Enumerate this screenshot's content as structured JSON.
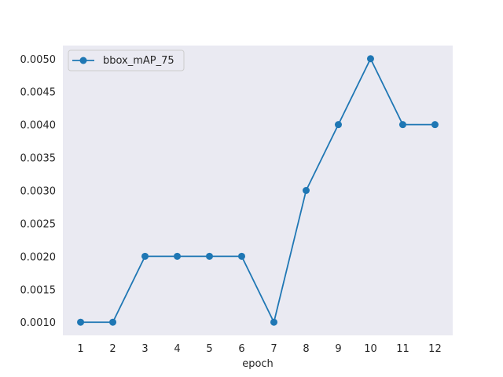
{
  "chart_data": {
    "type": "line",
    "title": "",
    "xlabel": "epoch",
    "ylabel": "",
    "x": [
      1,
      2,
      3,
      4,
      5,
      6,
      7,
      8,
      9,
      10,
      11,
      12
    ],
    "series": [
      {
        "name": "bbox_mAP_75",
        "values": [
          0.001,
          0.001,
          0.002,
          0.002,
          0.002,
          0.002,
          0.001,
          0.003,
          0.004,
          0.005,
          0.004,
          0.004
        ],
        "color": "#1f77b4",
        "marker": "circle"
      }
    ],
    "xlim": [
      0.45,
      12.55
    ],
    "ylim": [
      0.0008,
      0.0052
    ],
    "xticks": [
      "1",
      "2",
      "3",
      "4",
      "5",
      "6",
      "7",
      "8",
      "9",
      "10",
      "11",
      "12"
    ],
    "yticks": [
      "0.0010",
      "0.0015",
      "0.0020",
      "0.0025",
      "0.0030",
      "0.0035",
      "0.0040",
      "0.0045",
      "0.0050"
    ],
    "grid": false,
    "legend_position": "top-left",
    "plot_background": "#eaeaf2"
  }
}
